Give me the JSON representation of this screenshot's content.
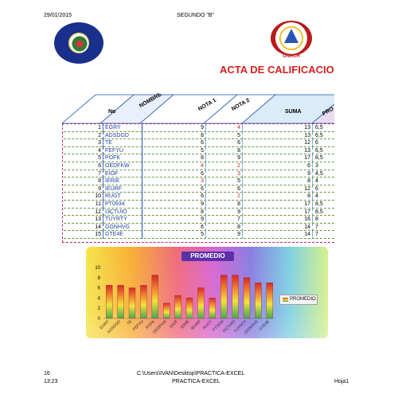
{
  "header": {
    "date": "29/01/2015",
    "section": "SEGUNDO \"B\""
  },
  "logos": {
    "left_icon": "university-seal-icon",
    "right_icon": "unach-shield-icon",
    "right_label": "UNACH"
  },
  "document": {
    "title": "ACTA DE CALIFICACIO"
  },
  "table": {
    "headers": [
      "No",
      "NOMBRE",
      "NOTA 1",
      "NOTA 2",
      "SUMA",
      "PRO"
    ],
    "rows": [
      {
        "no": "1",
        "name": "EGRY",
        "n1": "9",
        "n2": "4",
        "sum": "13",
        "prom": "6,5"
      },
      {
        "no": "2",
        "name": "ADSDGD",
        "n1": "8",
        "n2": "5",
        "sum": "13",
        "prom": "6,5"
      },
      {
        "no": "3",
        "name": "TE",
        "n1": "6",
        "n2": "6",
        "sum": "12",
        "prom": "6"
      },
      {
        "no": "4",
        "name": "FEFYU",
        "n1": "5",
        "n2": "8",
        "sum": "13",
        "prom": "6,5"
      },
      {
        "no": "5",
        "name": "POFK",
        "n1": "8",
        "n2": "9",
        "sum": "17",
        "prom": "8,5"
      },
      {
        "no": "6",
        "name": "OEDFKW",
        "n1": "4",
        "n2": "2",
        "sum": "6",
        "prom": "3"
      },
      {
        "no": "7",
        "name": "EIOF",
        "n1": "6",
        "n2": "3",
        "sum": "9",
        "prom": "4,5"
      },
      {
        "no": "8",
        "name": "IERIE",
        "n1": "3",
        "n2": "5",
        "sum": "8",
        "prom": "4"
      },
      {
        "no": "9",
        "name": "IEURF",
        "n1": "6",
        "n2": "6",
        "sum": "12",
        "prom": "6"
      },
      {
        "no": "10",
        "name": "RUGT",
        "n1": "6",
        "n2": "2",
        "sum": "8",
        "prom": "4"
      },
      {
        "no": "11",
        "name": "PT0934",
        "n1": "9",
        "n2": "8",
        "sum": "17",
        "prom": "8,5"
      },
      {
        "no": "12",
        "name": "I3ÇTUIO",
        "n1": "8",
        "n2": "9",
        "sum": "17",
        "prom": "8,5"
      },
      {
        "no": "13",
        "name": "TUYRTY",
        "n1": "9",
        "n2": "7",
        "sum": "16",
        "prom": "8"
      },
      {
        "no": "14",
        "name": "GGNHVG",
        "n1": "6",
        "n2": "8",
        "sum": "14",
        "prom": "7"
      },
      {
        "no": "15",
        "name": "GTE4E",
        "n1": "5",
        "n2": "9",
        "sum": "14",
        "prom": "7"
      }
    ]
  },
  "chart_data": {
    "type": "bar",
    "title": "PROMEDIO",
    "categories": [
      "EGRY",
      "ADSDGD",
      "TE",
      "FEFYU",
      "POFK",
      "OEDFKW",
      "EIOF",
      "IERIE",
      "IEURF",
      "RUGT",
      "PT0934",
      "I3ÇTUIO",
      "TUYRTY",
      "GGNHVG",
      "GTE4E"
    ],
    "series": [
      {
        "name": "PROMEDIO",
        "values": [
          6.5,
          6.5,
          6,
          6.5,
          8.5,
          3,
          4.5,
          4,
          6,
          4,
          8.5,
          8.5,
          8,
          7,
          7
        ]
      }
    ],
    "yticks": [
      "0",
      "2",
      "4",
      "6",
      "8",
      "10"
    ],
    "ylim": [
      0,
      10
    ],
    "legend_position": "right",
    "grid": false
  },
  "footer": {
    "page_no": "16",
    "time": "13:23",
    "path": "C:\\Users\\IVAN\\Desktop\\PRACTICA-EXCEL",
    "file": "PRACTICA-EXCEL",
    "sheet": "Hoja1"
  }
}
